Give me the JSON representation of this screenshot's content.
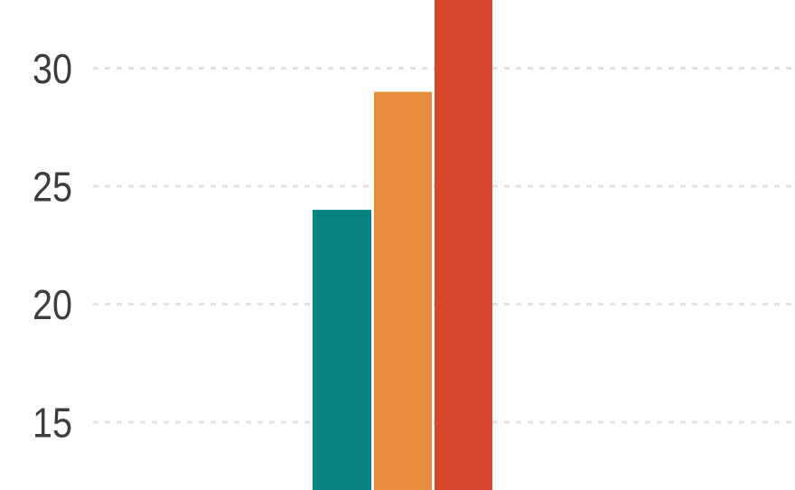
{
  "chart_data": {
    "type": "bar",
    "title": "",
    "xlabel": "",
    "ylabel": "",
    "y_ticks": [
      30,
      25,
      20,
      15
    ],
    "ylim_visible": [
      12.1,
      32.9
    ],
    "grid": "horizontal dashed gridlines, no axis lines",
    "legend_position": "none visible (chart cropped)",
    "categories": [],
    "series": [
      {
        "name": "teal-bar",
        "value": 24,
        "color": "#098380",
        "clipped_top": false,
        "clipped_bottom": true
      },
      {
        "name": "orange-bar",
        "value": 29,
        "color": "#e68c3c",
        "clipped_top": false,
        "clipped_bottom": true
      },
      {
        "name": "red-bar",
        "value": 33,
        "color": "#d84630",
        "clipped_top": true,
        "clipped_bottom": true
      }
    ],
    "note": "Cropped view of a grouped bar chart: bars run past the bottom edge; red bar top extends past the top edge; no title, category labels or legend are visible."
  },
  "colors": {
    "background": "#ffffff",
    "gridline": "#e2e2e2",
    "tick_label": "#3d3d3d"
  }
}
